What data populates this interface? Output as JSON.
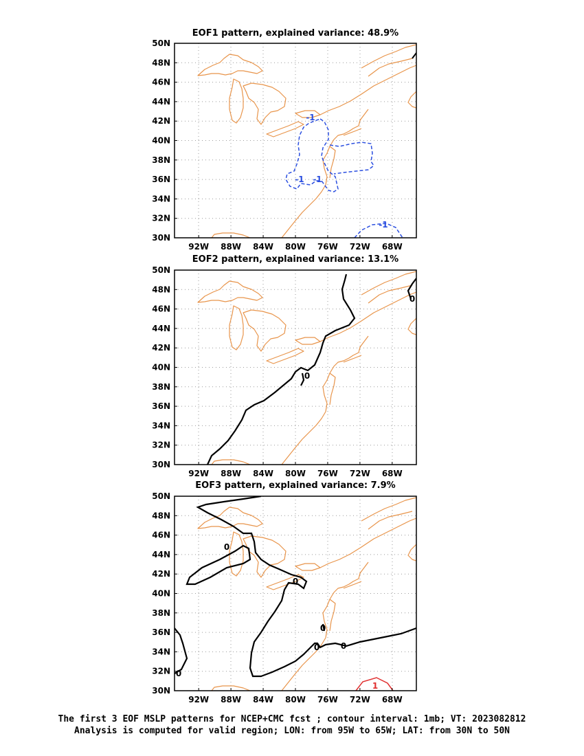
{
  "panels": [
    {
      "title": "EOF1 pattern, explained variance: 48.9%"
    },
    {
      "title": "EOF2 pattern, explained variance: 13.1%"
    },
    {
      "title": "EOF3 pattern, explained variance: 7.9%"
    }
  ],
  "axes": {
    "lon_ticks": [
      "92W",
      "88W",
      "84W",
      "80W",
      "76W",
      "72W",
      "68W"
    ],
    "lon_values": [
      -92,
      -88,
      -84,
      -80,
      -76,
      -72,
      -68
    ],
    "lat_ticks": [
      "30N",
      "32N",
      "34N",
      "36N",
      "38N",
      "40N",
      "42N",
      "44N",
      "46N",
      "48N",
      "50N"
    ],
    "lat_values": [
      30,
      32,
      34,
      36,
      38,
      40,
      42,
      44,
      46,
      48,
      50
    ],
    "lon_range": [
      -95,
      -65
    ],
    "lat_range": [
      30,
      50
    ],
    "grid": "dotted"
  },
  "colors": {
    "coastline": "#e8944a",
    "negative_contour": "#2b4fe0",
    "positive_contour": "#e03030",
    "zero_contour": "#000000",
    "grid": "#9a9a9a"
  },
  "contour_labels": {
    "eof1": [
      "-1",
      "-1",
      "-1",
      "-1"
    ],
    "eof2": [
      "0",
      "0"
    ],
    "eof3": [
      "0",
      "0",
      "0",
      "0",
      "0",
      "0",
      "1"
    ]
  },
  "caption": {
    "line1": "The first 3 EOF MSLP patterns for NCEP+CMC fcst ; contour interval: 1mb; VT: 2023082812",
    "line2": "Analysis is computed for valid region; LON: from 95W to 65W; LAT: from 30N to 50N"
  }
}
